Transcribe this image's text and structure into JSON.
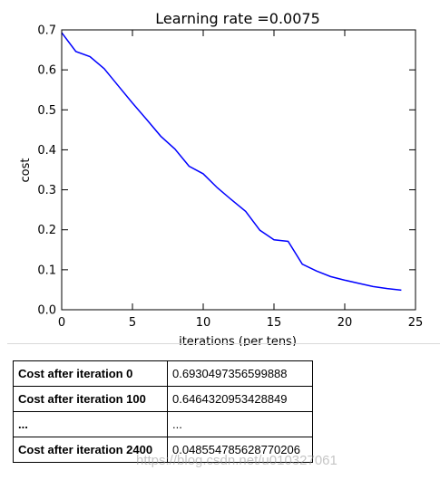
{
  "chart_data": {
    "type": "line",
    "title": "Learning rate =0.0075",
    "xlabel": "iterations (per tens)",
    "ylabel": "cost",
    "xlim": [
      0,
      25
    ],
    "ylim": [
      0.0,
      0.7
    ],
    "xticks": [
      "0",
      "5",
      "10",
      "15",
      "20",
      "25"
    ],
    "yticks": [
      "0.0",
      "0.1",
      "0.2",
      "0.3",
      "0.4",
      "0.5",
      "0.6",
      "0.7"
    ],
    "grid": false,
    "line_color": "#0000ff",
    "x": [
      0,
      1,
      2,
      3,
      4,
      5,
      6,
      7,
      8,
      9,
      10,
      11,
      12,
      13,
      14,
      15,
      16,
      17,
      18,
      19,
      20,
      21,
      22,
      23,
      24
    ],
    "y": [
      0.693,
      0.646,
      0.633,
      0.603,
      0.56,
      0.517,
      0.476,
      0.434,
      0.402,
      0.359,
      0.34,
      0.305,
      0.275,
      0.246,
      0.199,
      0.175,
      0.171,
      0.114,
      0.097,
      0.083,
      0.074,
      0.066,
      0.058,
      0.053,
      0.049
    ]
  },
  "results_table": {
    "rows": [
      {
        "label": "Cost after iteration 0",
        "value": "0.6930497356599888"
      },
      {
        "label": "Cost after iteration 100",
        "value": "0.6464320953428849"
      },
      {
        "label": "...",
        "value": "..."
      },
      {
        "label": "Cost after iteration 2400",
        "value": "0.048554785628770206"
      }
    ]
  },
  "watermark": "https://blog.csdn.net/u010327061"
}
